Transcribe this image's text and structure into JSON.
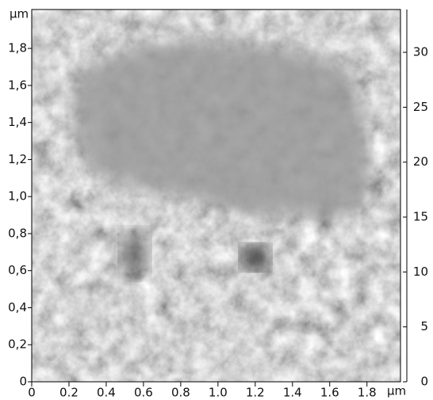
{
  "chart_data": {
    "type": "image",
    "x_unit": "µm",
    "y_unit": "µm",
    "xlim": [
      0,
      1.98
    ],
    "ylim": [
      0,
      2.01
    ],
    "y2lim": [
      0,
      33.9
    ],
    "xticks": [
      0,
      {
        "value": 0.2,
        "label": "0.2"
      },
      {
        "value": 0.4,
        "label": "0.4"
      },
      {
        "value": 0.6,
        "label": "0.6"
      },
      {
        "value": 0.8,
        "label": "0.8"
      },
      {
        "value": 1.0,
        "label": "1.0"
      },
      {
        "value": 1.2,
        "label": "1.2"
      },
      {
        "value": 1.4,
        "label": "1.4"
      },
      {
        "value": 1.6,
        "label": "1.6"
      },
      {
        "value": 1.8,
        "label": "1.8"
      }
    ],
    "yticks": [
      0,
      {
        "value": 0.2,
        "label": "0,2"
      },
      {
        "value": 0.4,
        "label": "0,4"
      },
      {
        "value": 0.6,
        "label": "0,6"
      },
      {
        "value": 0.8,
        "label": "0,8"
      },
      {
        "value": 1.0,
        "label": "1,0"
      },
      {
        "value": 1.2,
        "label": "1,2"
      },
      {
        "value": 1.4,
        "label": "1,4"
      },
      {
        "value": 1.6,
        "label": "1,6"
      },
      {
        "value": 1.8,
        "label": "1,8"
      }
    ],
    "y2ticks": [
      0,
      5,
      10,
      15,
      20,
      25,
      30
    ]
  }
}
